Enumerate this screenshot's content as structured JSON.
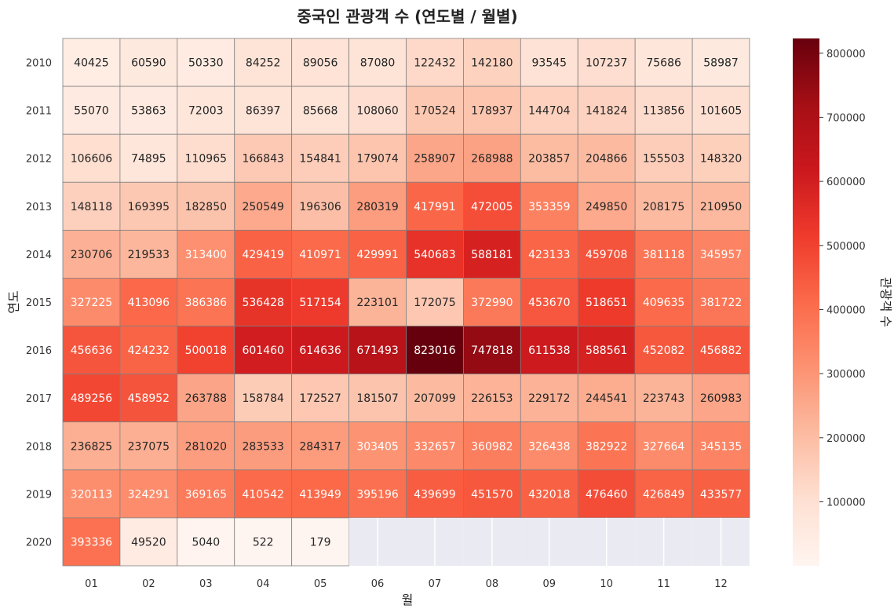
{
  "chart_data": {
    "type": "heatmap",
    "title": "중국인 관광객 수 (연도별 / 월별)",
    "xlabel": "월",
    "ylabel": "연도",
    "colorbar_label": "관광객 수",
    "colormap": "Reds",
    "months": [
      "01",
      "02",
      "03",
      "04",
      "05",
      "06",
      "07",
      "08",
      "09",
      "10",
      "11",
      "12"
    ],
    "years": [
      "2010",
      "2011",
      "2012",
      "2013",
      "2014",
      "2015",
      "2016",
      "2017",
      "2018",
      "2019",
      "2020"
    ],
    "values": [
      [
        40425,
        60590,
        50330,
        84252,
        89056,
        87080,
        122432,
        142180,
        93545,
        107237,
        75686,
        58987
      ],
      [
        55070,
        53863,
        72003,
        86397,
        85668,
        108060,
        170524,
        178937,
        144704,
        141824,
        113856,
        101605
      ],
      [
        106606,
        74895,
        110965,
        166843,
        154841,
        179074,
        258907,
        268988,
        203857,
        204866,
        155503,
        148320
      ],
      [
        148118,
        169395,
        182850,
        250549,
        196306,
        280319,
        417991,
        472005,
        353359,
        249850,
        208175,
        210950
      ],
      [
        230706,
        219533,
        313400,
        429419,
        410971,
        429991,
        540683,
        588181,
        423133,
        459708,
        381118,
        345957
      ],
      [
        327225,
        413096,
        386386,
        536428,
        517154,
        223101,
        172075,
        372990,
        453670,
        518651,
        409635,
        381722
      ],
      [
        456636,
        424232,
        500018,
        601460,
        614636,
        671493,
        823016,
        747818,
        611538,
        588561,
        452082,
        456882
      ],
      [
        489256,
        458952,
        263788,
        158784,
        172527,
        181507,
        207099,
        226153,
        229172,
        244541,
        223743,
        260983
      ],
      [
        236825,
        237075,
        281020,
        283533,
        284317,
        303405,
        332657,
        360982,
        326438,
        382922,
        327664,
        345135
      ],
      [
        320113,
        324291,
        369165,
        410542,
        413949,
        395196,
        439699,
        451570,
        432018,
        476460,
        426849,
        433577
      ],
      [
        393336,
        49520,
        5040,
        522,
        179,
        null,
        null,
        null,
        null,
        null,
        null,
        null
      ]
    ],
    "vmin": 179,
    "vmax": 823016,
    "colorbar_ticks": [
      100000,
      200000,
      300000,
      400000,
      500000,
      600000,
      700000,
      800000
    ],
    "colorbar_tick_labels": [
      "100000",
      "200000",
      "300000",
      "400000",
      "500000",
      "600000",
      "700000",
      "800000"
    ],
    "missing_color": "#eaeaf2"
  }
}
